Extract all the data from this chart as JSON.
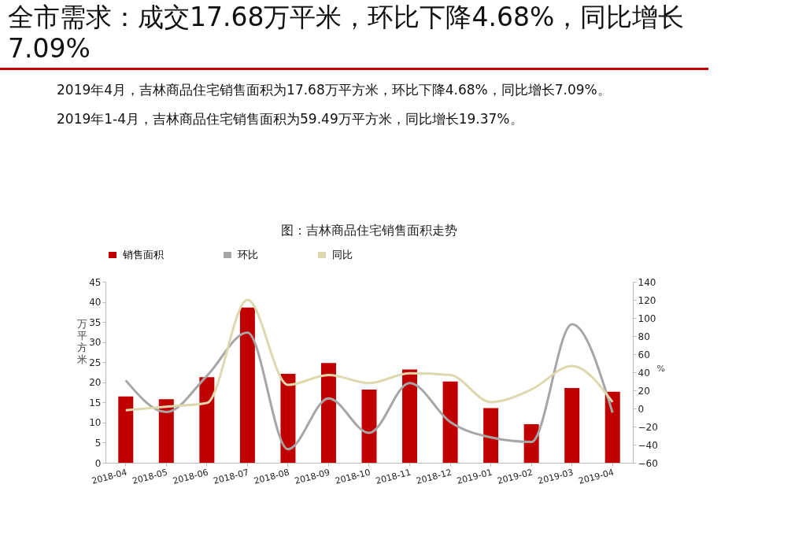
{
  "chart_data": {
    "type": "bar",
    "title": "全市需求：成交17.68万平米，环比下降4.68%，同比增长7.09%",
    "subtitle": "图：吉林商品住宅销售面积走势",
    "annotations": [
      "2019年4月，吉林商品住宅销售面积为17.68万平方米，环比下降4.68%，同比增长7.09%。",
      "2019年1-4月，吉林商品住宅销售面积为59.49万平方米，同比增长19.37%。"
    ],
    "ylabel": "万平方米",
    "y2label": "%",
    "categories": [
      "2018-04",
      "2018-05",
      "2018-06",
      "2018-07",
      "2018-08",
      "2018-09",
      "2018-10",
      "2018-11",
      "2018-12",
      "2019-01",
      "2019-02",
      "2019-03",
      "2019-04"
    ],
    "series": [
      {
        "name": "销售面积",
        "color": "#c00000",
        "values": [
          16.5,
          15.8,
          21.3,
          38.6,
          22.1,
          24.8,
          18.2,
          23.2,
          20.2,
          13.6,
          9.6,
          18.6,
          17.68
        ]
      },
      {
        "name": "环比",
        "type": "line",
        "axis": "y2",
        "color": "#a6a6a6",
        "values": [
          31,
          -4,
          36,
          84,
          -45,
          11,
          -27,
          28,
          -15,
          -32,
          -37,
          93,
          -4.68
        ]
      },
      {
        "name": "同比",
        "type": "line",
        "axis": "y2",
        "color": "#ddd8ae",
        "values": [
          -2,
          2,
          6,
          120,
          26,
          37,
          28,
          39,
          37,
          7,
          21,
          47,
          7.09
        ]
      }
    ],
    "ylim": [
      0,
      45
    ],
    "yticks": [
      0,
      5,
      10,
      15,
      20,
      25,
      30,
      35,
      40,
      45
    ],
    "y2lim": [
      -60,
      140
    ],
    "y2ticks": [
      -60,
      -40,
      -20,
      0,
      20,
      40,
      60,
      80,
      100,
      120,
      140
    ],
    "grid": false,
    "legend": "top",
    "marker": "none",
    "line_style": "solid"
  }
}
